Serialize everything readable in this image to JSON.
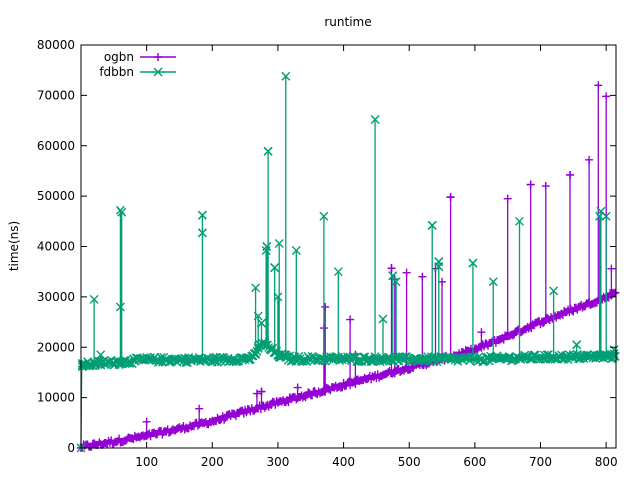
{
  "chart_data": {
    "type": "line",
    "title": "runtime",
    "xlabel": "",
    "ylabel": "time(ns)",
    "xlim": [
      0,
      815
    ],
    "ylim": [
      0,
      80000
    ],
    "x_ticks": [
      100,
      200,
      300,
      400,
      500,
      600,
      700,
      800
    ],
    "y_ticks": [
      0,
      10000,
      20000,
      30000,
      40000,
      50000,
      60000,
      70000,
      80000
    ],
    "grid": false,
    "legend_position": "top-left",
    "series": [
      {
        "name": "ogbn",
        "color": "#9400d3",
        "marker": "plus",
        "trend": [
          [
            0,
            0
          ],
          [
            1,
            200
          ],
          [
            100,
            2400
          ],
          [
            200,
            5300
          ],
          [
            270,
            8000
          ],
          [
            300,
            9000
          ],
          [
            400,
            12500
          ],
          [
            500,
            16000
          ],
          [
            560,
            18000
          ],
          [
            600,
            19500
          ],
          [
            700,
            25000
          ],
          [
            800,
            30000
          ],
          [
            815,
            31000
          ]
        ],
        "spikes": [
          [
            100,
            5200
          ],
          [
            180,
            7800
          ],
          [
            268,
            10800
          ],
          [
            275,
            11200
          ],
          [
            290,
            8800
          ],
          [
            330,
            12000
          ],
          [
            370,
            23800
          ],
          [
            372,
            28000
          ],
          [
            410,
            25500
          ],
          [
            418,
            18500
          ],
          [
            473,
            35700
          ],
          [
            478,
            33500
          ],
          [
            496,
            34800
          ],
          [
            520,
            34000
          ],
          [
            540,
            35600
          ],
          [
            550,
            33000
          ],
          [
            563,
            49800
          ],
          [
            610,
            23000
          ],
          [
            650,
            49500
          ],
          [
            685,
            52300
          ],
          [
            708,
            52000
          ],
          [
            745,
            54200
          ],
          [
            774,
            57200
          ],
          [
            788,
            72000
          ],
          [
            800,
            69800
          ],
          [
            808,
            35600
          ]
        ]
      },
      {
        "name": "fdbbn",
        "color": "#009e73",
        "marker": "cross",
        "trend": [
          [
            0,
            0
          ],
          [
            1,
            16500
          ],
          [
            100,
            17500
          ],
          [
            200,
            17500
          ],
          [
            262,
            17800
          ],
          [
            275,
            21000
          ],
          [
            300,
            18500
          ],
          [
            320,
            17700
          ],
          [
            400,
            17700
          ],
          [
            500,
            17600
          ],
          [
            600,
            17600
          ],
          [
            700,
            18000
          ],
          [
            815,
            18200
          ]
        ],
        "spikes": [
          [
            2,
            16800
          ],
          [
            20,
            29500
          ],
          [
            30,
            18500
          ],
          [
            60,
            47200
          ],
          [
            60,
            28000
          ],
          [
            62,
            46800
          ],
          [
            185,
            46200
          ],
          [
            185,
            42700
          ],
          [
            266,
            31800
          ],
          [
            270,
            26200
          ],
          [
            275,
            24800
          ],
          [
            282,
            39200
          ],
          [
            283,
            40000
          ],
          [
            285,
            58900
          ],
          [
            295,
            35800
          ],
          [
            300,
            30000
          ],
          [
            302,
            40600
          ],
          [
            312,
            73800
          ],
          [
            328,
            39200
          ],
          [
            370,
            46000
          ],
          [
            392,
            35000
          ],
          [
            448,
            65200
          ],
          [
            460,
            25600
          ],
          [
            475,
            34200
          ],
          [
            480,
            33000
          ],
          [
            535,
            44200
          ],
          [
            545,
            37000
          ],
          [
            545,
            36000
          ],
          [
            597,
            36700
          ],
          [
            628,
            33000
          ],
          [
            668,
            45000
          ],
          [
            720,
            31200
          ],
          [
            755,
            20500
          ],
          [
            790,
            46000
          ],
          [
            792,
            47000
          ],
          [
            800,
            46000
          ],
          [
            812,
            19500
          ]
        ]
      }
    ]
  }
}
